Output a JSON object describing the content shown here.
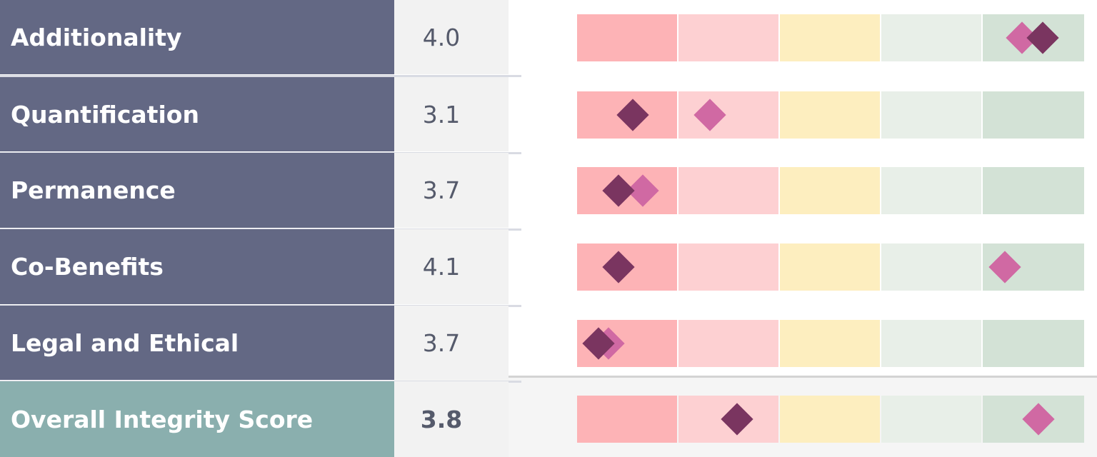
{
  "chart_data": {
    "type": "table",
    "scale": {
      "min": 0,
      "max": 5
    },
    "band_colors": [
      "#fdb3b6",
      "#fdd0d2",
      "#fdeebf",
      "#e8efe8",
      "#d3e2d6"
    ],
    "series": [
      {
        "color": "#7a3560"
      },
      {
        "color": "#d069a3"
      }
    ],
    "rows": [
      {
        "label": "Additionality",
        "score": "4.0",
        "markers": [
          4.59,
          4.39
        ]
      },
      {
        "label": "Quantification",
        "score": "3.1",
        "markers": [
          0.55,
          1.31
        ]
      },
      {
        "label": "Permanence",
        "score": "3.7",
        "markers": [
          0.41,
          0.65
        ]
      },
      {
        "label": "Co-Benefits",
        "score": "4.1",
        "markers": [
          0.41,
          4.22
        ]
      },
      {
        "label": "Legal and Ethical",
        "score": "3.7",
        "markers": [
          0.21,
          0.31
        ]
      },
      {
        "label": "Overall Integrity Score",
        "score": "3.8",
        "markers": [
          1.58,
          4.55
        ],
        "overall": true
      }
    ]
  }
}
